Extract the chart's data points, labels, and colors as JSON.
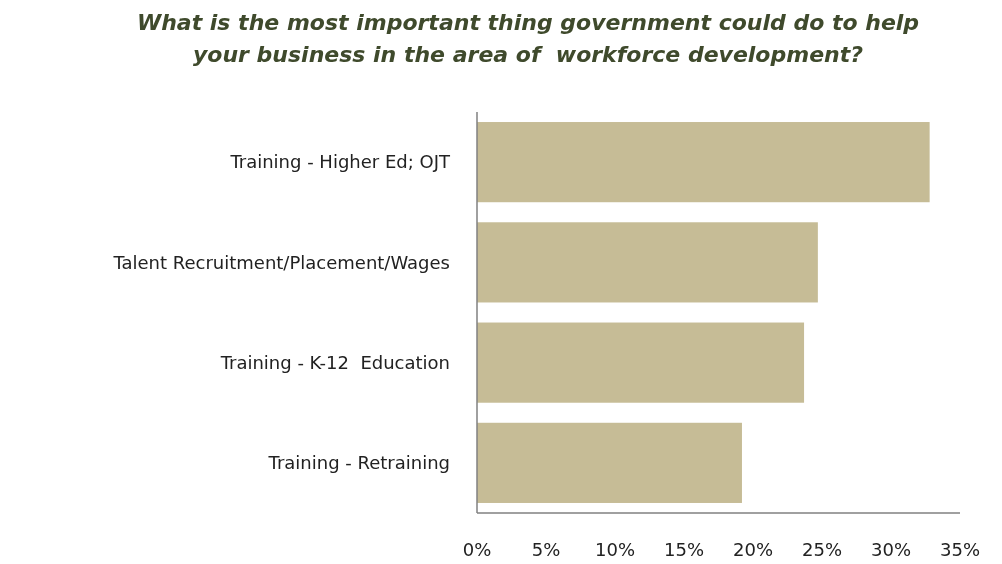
{
  "chart_data": {
    "type": "bar",
    "orientation": "horizontal",
    "title": "What is the most important thing government could do to help your business in the area of  workforce development?",
    "categories": [
      "Training - Higher Ed; OJT",
      "Talent Recruitment/Placement/Wages",
      "Training - K-12  Education",
      "Training - Retraining"
    ],
    "values": [
      32.8,
      24.7,
      23.7,
      19.2
    ],
    "color": "#c6bc96",
    "xlim": [
      0,
      35
    ],
    "xticks": [
      {
        "value": 0,
        "label": "0%"
      },
      {
        "value": 5,
        "label": "5%"
      },
      {
        "value": 10,
        "label": "10%"
      },
      {
        "value": 15,
        "label": "15%"
      },
      {
        "value": 20,
        "label": "20%"
      },
      {
        "value": 25,
        "label": "25%"
      },
      {
        "value": 30,
        "label": "30%"
      },
      {
        "value": 35,
        "label": "35%"
      }
    ],
    "grid": false
  }
}
